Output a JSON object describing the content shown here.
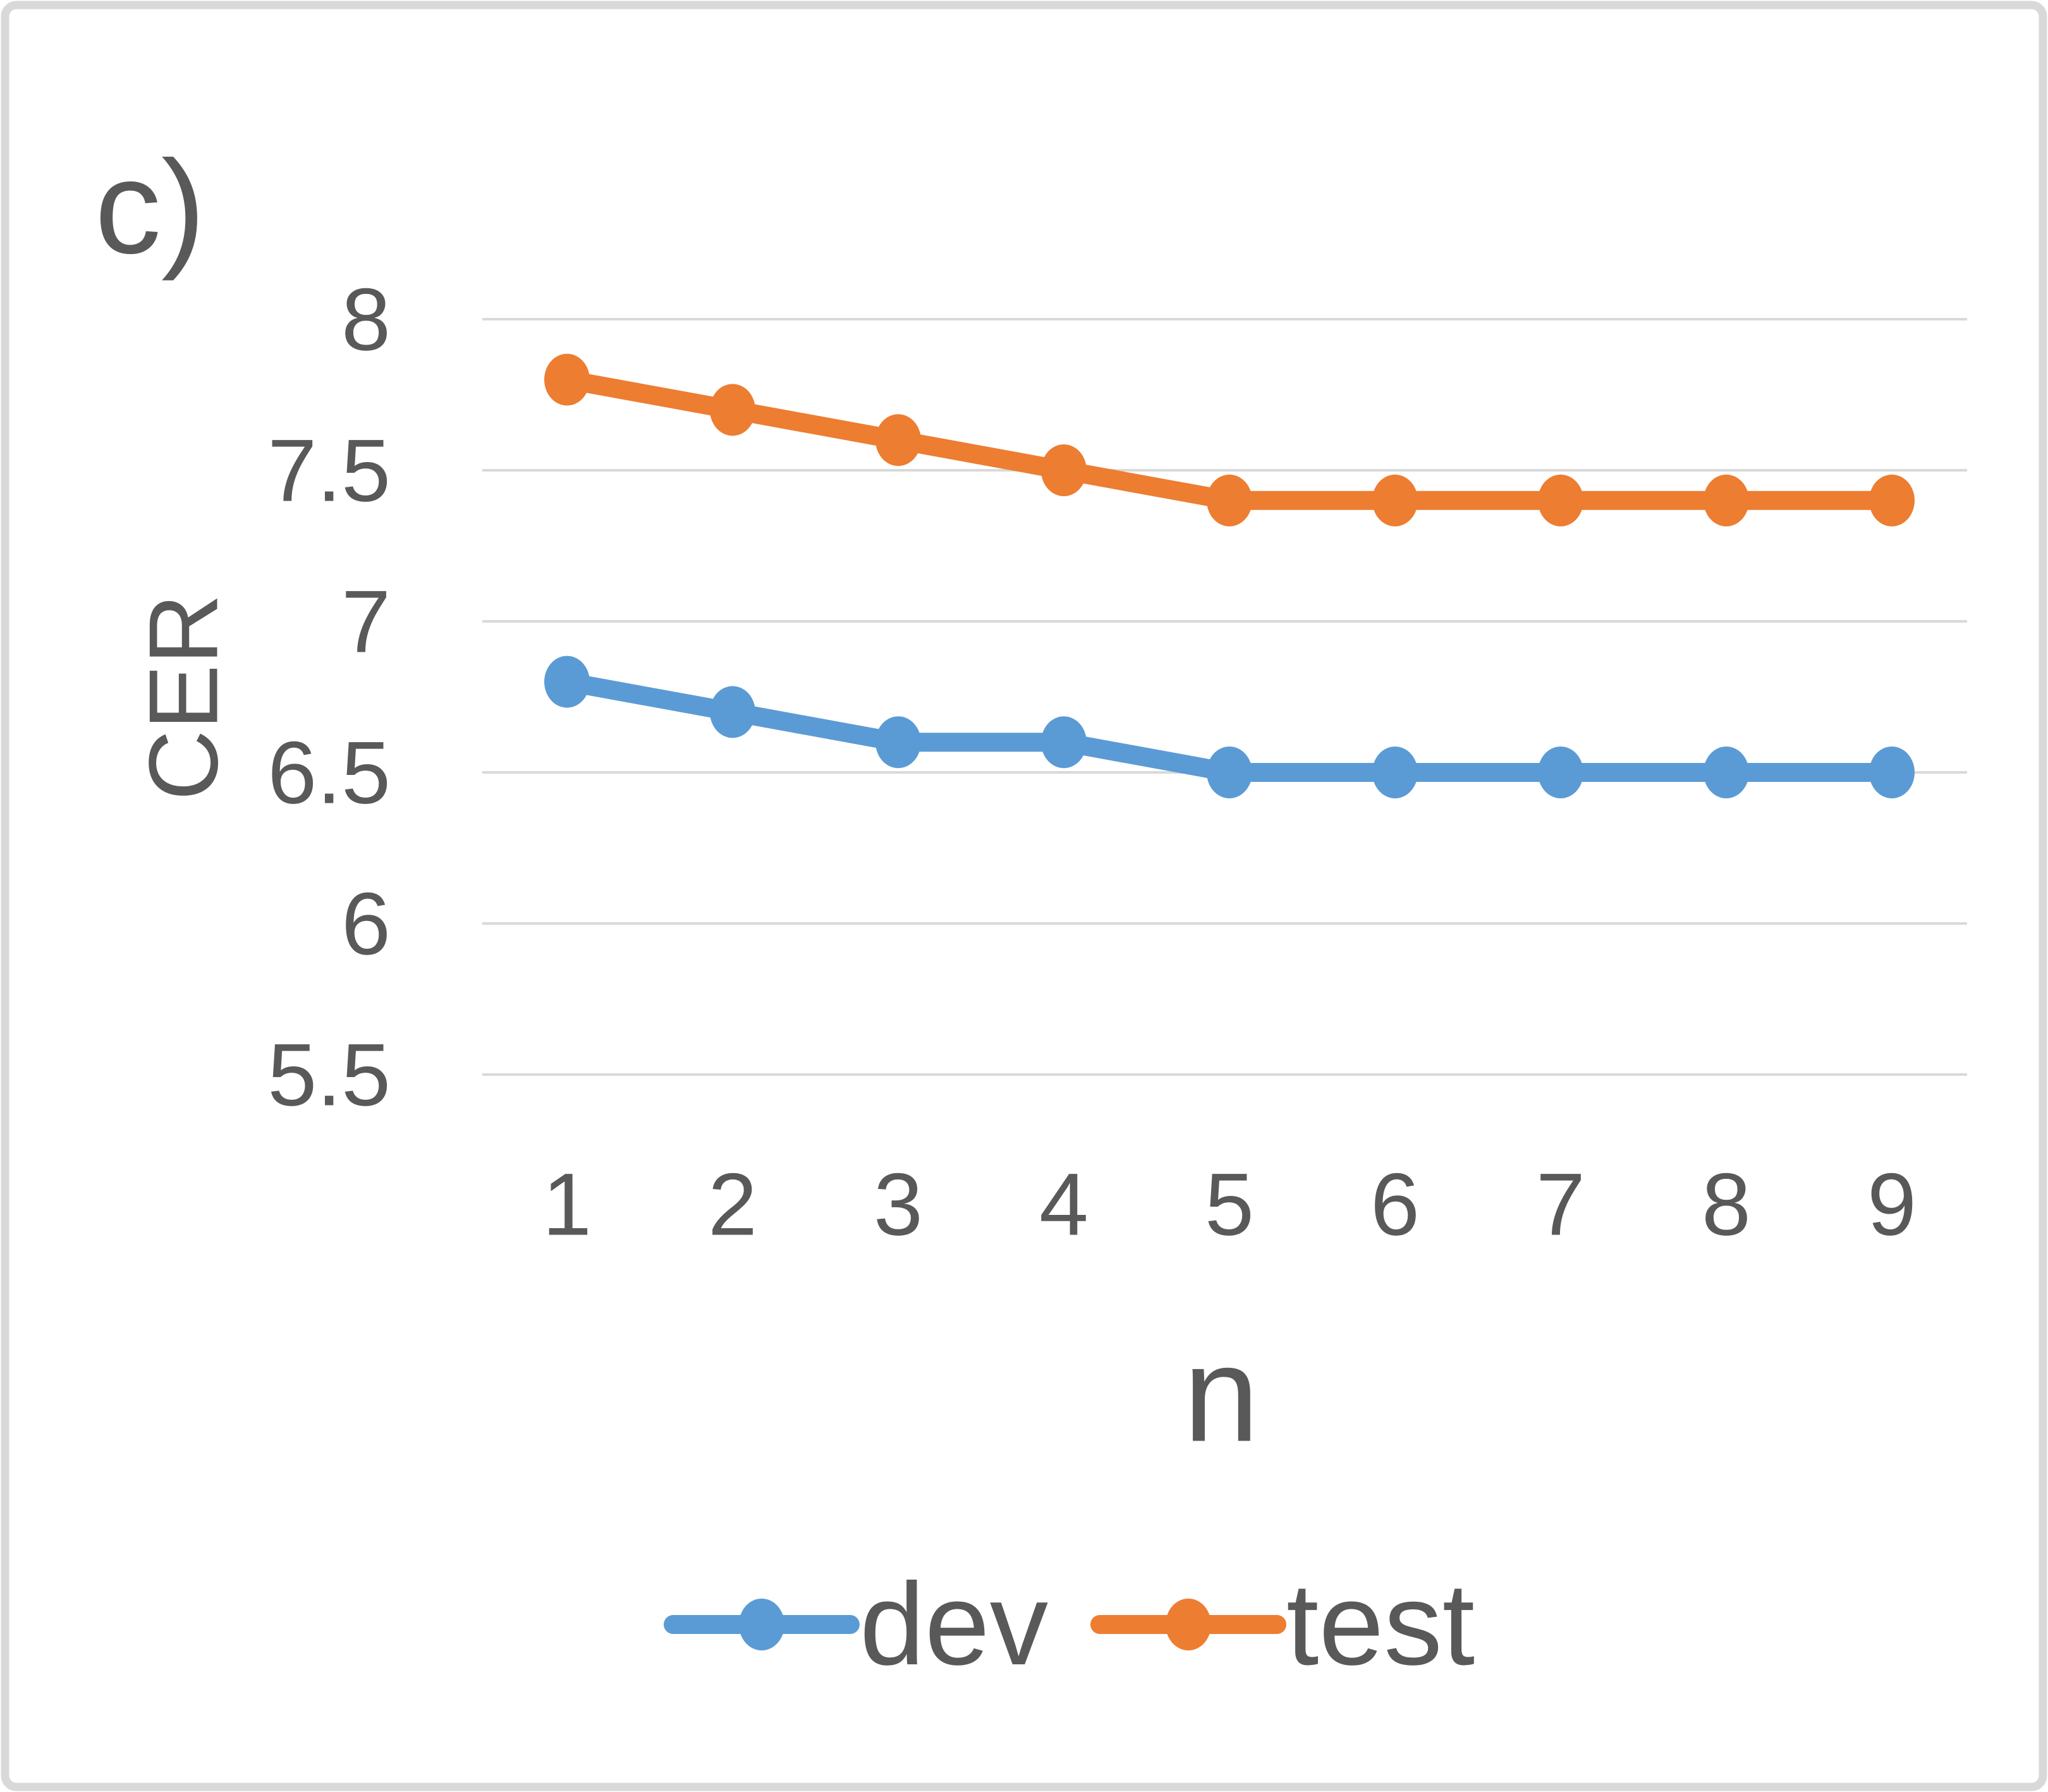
{
  "panel_label": "c)",
  "colors": {
    "dev": "#5B9BD5",
    "test": "#ED7D31",
    "text": "#595959",
    "gridline": "#D9D9D9",
    "frame": "#D9D9D9",
    "background": "#FFFFFF"
  },
  "chart_data": {
    "type": "line",
    "title": "",
    "xlabel": "n",
    "ylabel": "CER",
    "x": [
      1,
      2,
      3,
      4,
      5,
      6,
      7,
      8,
      9
    ],
    "series": [
      {
        "name": "dev",
        "color": "#5B9BD5",
        "values": [
          6.8,
          6.7,
          6.6,
          6.6,
          6.5,
          6.5,
          6.5,
          6.5,
          6.5
        ]
      },
      {
        "name": "test",
        "color": "#ED7D31",
        "values": [
          7.8,
          7.7,
          7.6,
          7.5,
          7.4,
          7.4,
          7.4,
          7.4,
          7.4
        ]
      }
    ],
    "xtick_labels": [
      "1",
      "2",
      "3",
      "4",
      "5",
      "6",
      "7",
      "8",
      "9"
    ],
    "yticks": [
      8,
      7.5,
      7,
      6.5,
      6,
      5.5
    ],
    "ytick_labels": [
      "8",
      "7.5",
      "7",
      "6.5",
      "6",
      "5.5"
    ],
    "ylim": [
      5.5,
      8
    ],
    "grid": "horizontal",
    "legend_position": "bottom"
  }
}
